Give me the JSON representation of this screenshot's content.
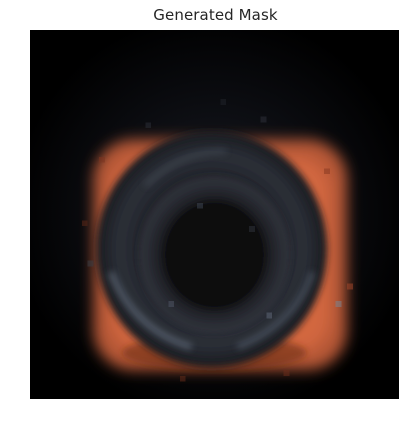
{
  "figure": {
    "title": "Generated Mask"
  },
  "image": {
    "icon": "generated-mask-image",
    "palette": {
      "background": "#000000",
      "halo": "#d9663f",
      "halo_dark": "#8a3a22",
      "ring": "#2a2d35",
      "ring_highlight": "#7a8595",
      "core": "#15161a"
    }
  }
}
